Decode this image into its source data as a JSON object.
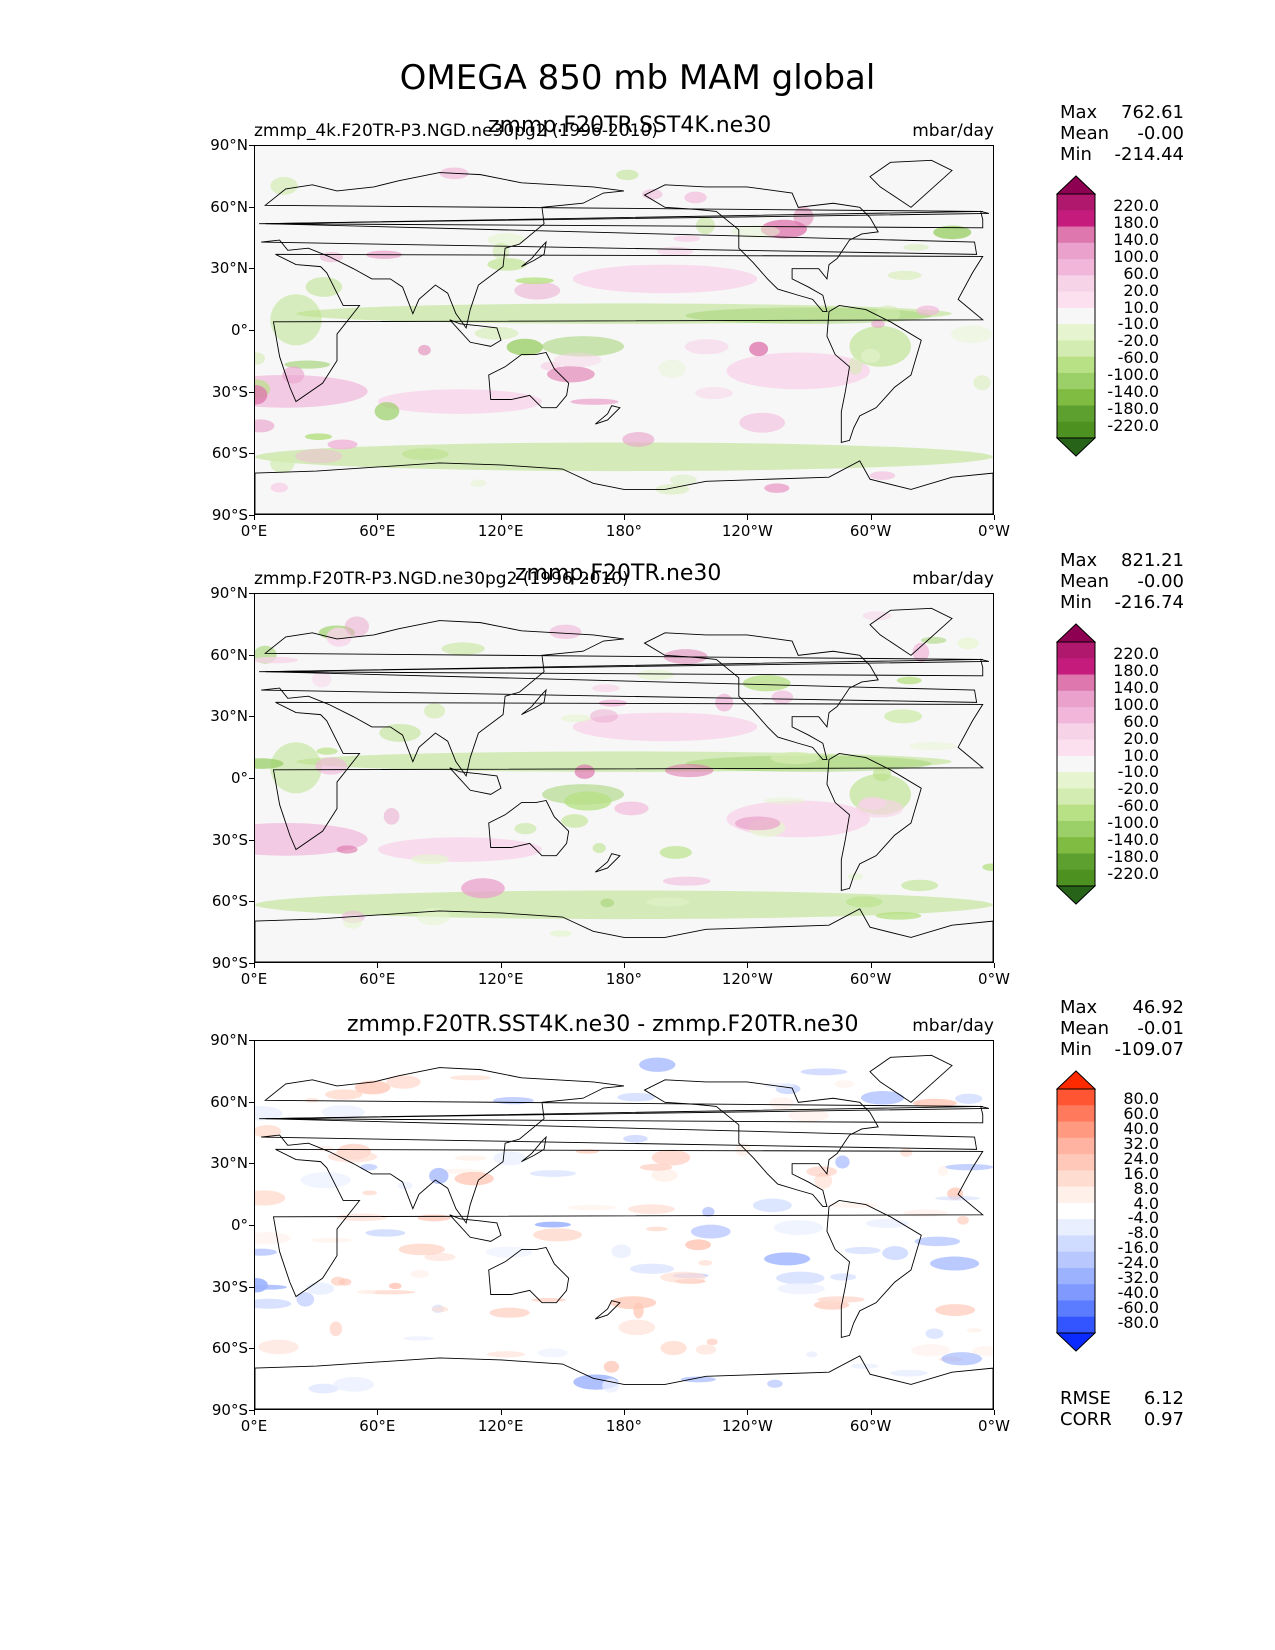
{
  "figure": {
    "title": "OMEGA 850 mb MAM global"
  },
  "axes": {
    "lat_ticks": [
      "90°N",
      "60°N",
      "30°N",
      "0°",
      "30°S",
      "60°S",
      "90°S"
    ],
    "lon_ticks": [
      "0°E",
      "60°E",
      "120°E",
      "180°",
      "120°W",
      "60°W",
      "0°W"
    ]
  },
  "panels": [
    {
      "left_title": "zmmp_4k.F20TR-P3.NGD.ne30pg2 (1996-2010)",
      "center_title": "zmmp.F20TR.SST4K.ne30",
      "units": "mbar/day",
      "stats": {
        "max_label": "Max",
        "max": "762.61",
        "mean_label": "Mean",
        "mean": "-0.00",
        "min_label": "Min",
        "min": "-214.44"
      },
      "colorbar_labels": [
        "220.0",
        "180.0",
        "140.0",
        "100.0",
        "60.0",
        "20.0",
        "10.0",
        "-10.0",
        "-20.0",
        "-60.0",
        "-100.0",
        "-140.0",
        "-180.0",
        "-220.0"
      ]
    },
    {
      "left_title": "zmmp.F20TR-P3.NGD.ne30pg2 (1996-2010)",
      "center_title": "zmmp.F20TR.ne30",
      "units": "mbar/day",
      "stats": {
        "max_label": "Max",
        "max": "821.21",
        "mean_label": "Mean",
        "mean": "-0.00",
        "min_label": "Min",
        "min": "-216.74"
      },
      "colorbar_labels": [
        "220.0",
        "180.0",
        "140.0",
        "100.0",
        "60.0",
        "20.0",
        "10.0",
        "-10.0",
        "-20.0",
        "-60.0",
        "-100.0",
        "-140.0",
        "-180.0",
        "-220.0"
      ]
    },
    {
      "left_title": "",
      "center_title": "zmmp.F20TR.SST4K.ne30 - zmmp.F20TR.ne30",
      "units": "mbar/day",
      "stats": {
        "max_label": "Max",
        "max": "46.92",
        "mean_label": "Mean",
        "mean": "-0.01",
        "min_label": "Min",
        "min": "-109.07"
      },
      "colorbar_labels": [
        "80.0",
        "60.0",
        "40.0",
        "32.0",
        "24.0",
        "16.0",
        "8.0",
        "4.0",
        "-4.0",
        "-8.0",
        "-16.0",
        "-24.0",
        "-32.0",
        "-40.0",
        "-60.0",
        "-80.0"
      ],
      "rmse_label": "RMSE",
      "rmse": "6.12",
      "corr_label": "CORR",
      "corr": "0.97"
    }
  ],
  "colors": {
    "field_colorbar": [
      "#8e0152",
      "#b0186e",
      "#c51b7d",
      "#de77ae",
      "#eaa2cc",
      "#f1b6da",
      "#f7d3e8",
      "#fde0ef",
      "#f7f7f7",
      "#e6f5d0",
      "#d3ecb1",
      "#b8e186",
      "#9bcf68",
      "#7fbc41",
      "#5ea030",
      "#4d9221",
      "#276419"
    ],
    "diff_colorbar": [
      "#ff2a00",
      "#ff5533",
      "#ff7a5c",
      "#ff9a80",
      "#ffb3a0",
      "#ffc8b8",
      "#ffdcd0",
      "#fff0ea",
      "#ffffff",
      "#eaefff",
      "#d0dcff",
      "#b8c8ff",
      "#9cb2ff",
      "#7f99ff",
      "#5c7cff",
      "#3355ff",
      "#0a2aff"
    ]
  }
}
